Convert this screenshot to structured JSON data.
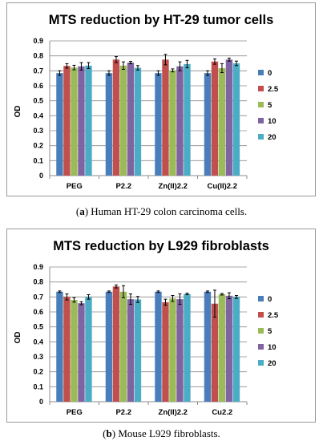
{
  "panels": [
    {
      "caption_letter": "a",
      "caption_text": "Human HT-29 colon carcinoma cells.",
      "chart_data": {
        "type": "bar",
        "title": "MTS reduction by HT-29 tumor cells",
        "ylabel": "OD",
        "xlabel": "",
        "ylim": [
          0,
          0.9
        ],
        "yticks": [
          "0",
          "0.1",
          "0.2",
          "0.3",
          "0.4",
          "0.5",
          "0.6",
          "0.7",
          "0.8",
          "0.9"
        ],
        "grid": true,
        "legend_position": "right",
        "categories": [
          "PEG",
          "P2.2",
          "Zn(II)2.2",
          "Cu(II)2.2"
        ],
        "series": [
          {
            "name": "0",
            "color": "#4A7EBB",
            "values": [
              0.685,
              0.685,
              0.685,
              0.685
            ],
            "errors": [
              0.015,
              0.015,
              0.015,
              0.015
            ]
          },
          {
            "name": "2.5",
            "color": "#C0504D",
            "values": [
              0.733,
              0.775,
              0.775,
              0.762
            ],
            "errors": [
              0.015,
              0.02,
              0.035,
              0.018
            ]
          },
          {
            "name": "5",
            "color": "#9BBB59",
            "values": [
              0.722,
              0.735,
              0.703,
              0.718
            ],
            "errors": [
              0.015,
              0.025,
              0.01,
              0.03
            ]
          },
          {
            "name": "10",
            "color": "#8064A2",
            "values": [
              0.73,
              0.755,
              0.73,
              0.775
            ],
            "errors": [
              0.025,
              0.008,
              0.03,
              0.01
            ]
          },
          {
            "name": "20",
            "color": "#4BACC6",
            "values": [
              0.735,
              0.72,
              0.745,
              0.75
            ],
            "errors": [
              0.02,
              0.015,
              0.025,
              0.015
            ]
          }
        ]
      }
    },
    {
      "caption_letter": "b",
      "caption_text": "Mouse L929 fibroblasts.",
      "chart_data": {
        "type": "bar",
        "title": "MTS reduction by L929 fibroblasts",
        "ylabel": "OD",
        "xlabel": "",
        "ylim": [
          0,
          0.9
        ],
        "yticks": [
          "0",
          "0.1",
          "0.2",
          "0.3",
          "0.4",
          "0.5",
          "0.6",
          "0.7",
          "0.8",
          "0.9"
        ],
        "grid": true,
        "legend_position": "right",
        "categories": [
          "PEG",
          "P2.2",
          "Zn(II)2.2",
          "Cu2.2"
        ],
        "series": [
          {
            "name": "0",
            "color": "#4A7EBB",
            "values": [
              0.735,
              0.735,
              0.735,
              0.735
            ],
            "errors": [
              0.005,
              0.005,
              0.005,
              0.005
            ]
          },
          {
            "name": "2.5",
            "color": "#C0504D",
            "values": [
              0.7,
              0.77,
              0.665,
              0.655
            ],
            "errors": [
              0.02,
              0.01,
              0.02,
              0.09
            ]
          },
          {
            "name": "5",
            "color": "#9BBB59",
            "values": [
              0.68,
              0.735,
              0.69,
              0.718
            ],
            "errors": [
              0.015,
              0.04,
              0.02,
              0.005
            ]
          },
          {
            "name": "10",
            "color": "#8064A2",
            "values": [
              0.658,
              0.685,
              0.685,
              0.708
            ],
            "errors": [
              0.01,
              0.035,
              0.035,
              0.02
            ]
          },
          {
            "name": "20",
            "color": "#4BACC6",
            "values": [
              0.7,
              0.683,
              0.72,
              0.7
            ],
            "errors": [
              0.015,
              0.02,
              0.005,
              0.01
            ]
          }
        ]
      }
    }
  ]
}
